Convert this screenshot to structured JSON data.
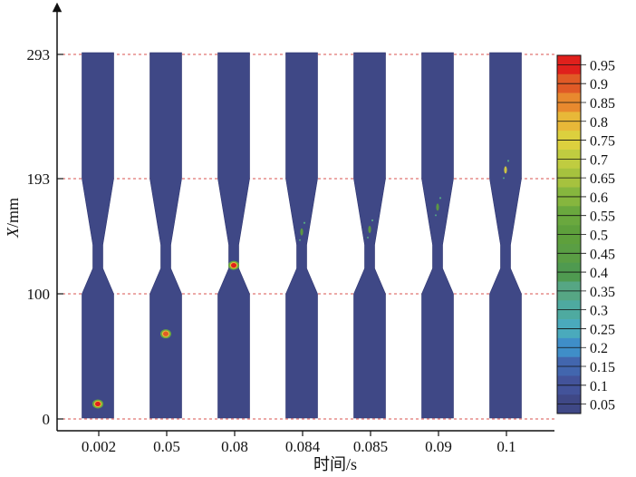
{
  "chart_data": {
    "type": "heatmap",
    "xlabel": "时间/s",
    "ylabel_var": "X",
    "ylabel_unit": "/mm",
    "categories": [
      "0.002",
      "0.05",
      "0.08",
      "0.084",
      "0.085",
      "0.09",
      "0.1"
    ],
    "y_ticks": [
      0,
      100,
      193,
      293
    ],
    "ylim": [
      0,
      293
    ],
    "grid": "dashed red horizontal lines at y ticks",
    "colorbar": {
      "labels": [
        "0.95",
        "0.9",
        "0.85",
        "0.8",
        "0.75",
        "0.7",
        "0.65",
        "0.6",
        "0.55",
        "0.5",
        "0.45",
        "0.4",
        "0.35",
        "0.3",
        "0.25",
        "0.2",
        "0.15",
        "0.1",
        "0.05"
      ],
      "colors": [
        "#e0201c",
        "#e05a26",
        "#e8892e",
        "#e8b838",
        "#dcd03e",
        "#c0cc40",
        "#a6c23e",
        "#86b63e",
        "#6aa83e",
        "#5ea03c",
        "#5a9e44",
        "#4f9a50",
        "#56a684",
        "#4eaaa0",
        "#4aaabc",
        "#3f8ec8",
        "#4266ae",
        "#43539a",
        "#3f4886"
      ]
    },
    "specimen_color": "#3f4886",
    "hotspots": [
      {
        "category": "0.002",
        "x_mm": 12,
        "value": 0.95
      },
      {
        "category": "0.05",
        "x_mm": 68,
        "value": 0.9
      },
      {
        "category": "0.08",
        "x_mm": 123,
        "value": 0.95
      },
      {
        "category": "0.084",
        "x_mm": 150,
        "value": 0.5
      },
      {
        "category": "0.085",
        "x_mm": 152,
        "value": 0.5
      },
      {
        "category": "0.09",
        "x_mm": 170,
        "value": 0.5
      },
      {
        "category": "0.1",
        "x_mm": 200,
        "value": 0.75
      }
    ]
  }
}
